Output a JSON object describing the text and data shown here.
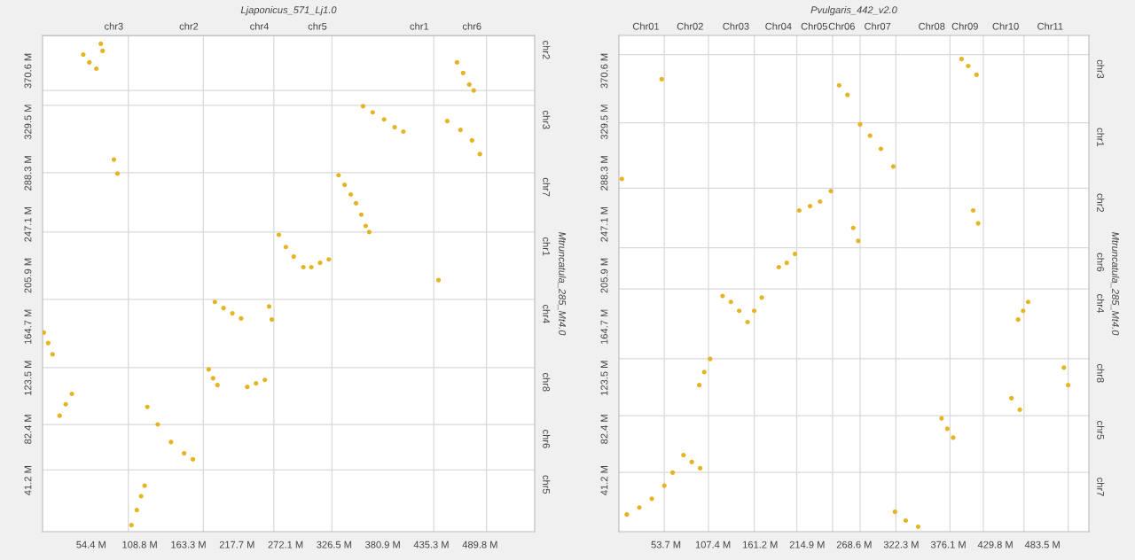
{
  "chart_data": [
    {
      "type": "scatter",
      "title": "Ljaponicus_571_Lj1.0",
      "y2label": "Mtruncatula_285_Mt4.0",
      "color": "#e6b422",
      "marker": "circle",
      "x": [
        99.6,
        105.5,
        110.4,
        114.3,
        117.3,
        128.9,
        143.8,
        158.5,
        168.3,
        19.1,
        25.9,
        32.8,
        1.4,
        6.3,
        11.2,
        186,
        190.9,
        195.8,
        229.2,
        239,
        248.9,
        192.9,
        202.7,
        212.5,
        222.3,
        253.7,
        256.7,
        264.6,
        272.4,
        281.2,
        292,
        300.9,
        310.7,
        320.5,
        331.4,
        338.2,
        345.1,
        351,
        356.9,
        361.8,
        365.7,
        358.8,
        369.6,
        382.4,
        394.2,
        404,
        453.1,
        467.9,
        480.8,
        489.6,
        464,
        470.9,
        477.8,
        482.7,
        79.9,
        83.9,
        45.6,
        52.4,
        60.3,
        65.2,
        67.2,
        443.3
      ],
      "values": [
        5.3,
        17.3,
        28.5,
        37,
        100.3,
        86.2,
        72.1,
        63,
        58.1,
        93.2,
        102.4,
        110.8,
        160.1,
        151.7,
        142.6,
        130.5,
        123.4,
        117.8,
        116.4,
        119.2,
        122,
        184.7,
        179.8,
        175.6,
        171.4,
        181.1,
        170.6,
        238.7,
        228.9,
        221.2,
        212.7,
        212.7,
        216.2,
        218.9,
        286.6,
        278.9,
        271.1,
        264.1,
        254.9,
        245.8,
        240.9,
        342.1,
        337.2,
        331.5,
        325.2,
        321.7,
        330.1,
        323,
        314.6,
        303.6,
        377.3,
        368.8,
        359.6,
        354.7,
        299.2,
        287.9,
        383.6,
        377.3,
        372.3,
        392.3,
        386.6,
        202.2
      ],
      "xlim": [
        0,
        551
      ],
      "ylim": [
        0,
        399
      ],
      "xticks": [
        {
          "value": 54.4,
          "label": "54.4 M"
        },
        {
          "value": 108.8,
          "label": "108.8 M"
        },
        {
          "value": 163.3,
          "label": "163.3 M"
        },
        {
          "value": 217.7,
          "label": "217.7 M"
        },
        {
          "value": 272.1,
          "label": "272.1 M"
        },
        {
          "value": 326.5,
          "label": "326.5 M"
        },
        {
          "value": 380.9,
          "label": "380.9 M"
        },
        {
          "value": 435.3,
          "label": "435.3 M"
        },
        {
          "value": 489.8,
          "label": "489.8 M"
        }
      ],
      "yticks": [
        {
          "value": 41.2,
          "label": "41.2 M"
        },
        {
          "value": 82.4,
          "label": "82.4 M"
        },
        {
          "value": 123.5,
          "label": "123.5 M"
        },
        {
          "value": 164.7,
          "label": "164.7 M"
        },
        {
          "value": 205.9,
          "label": "205.9 M"
        },
        {
          "value": 247.1,
          "label": "247.1 M"
        },
        {
          "value": 288.3,
          "label": "288.3 M"
        },
        {
          "value": 329.5,
          "label": "329.5 M"
        },
        {
          "value": 370.6,
          "label": "370.6 M"
        }
      ],
      "ref_lines": [
        {
          "axis": "x",
          "value": 96,
          "label": "chr3",
          "color": "#d9d9d9"
        },
        {
          "axis": "x",
          "value": 180,
          "label": "chr2",
          "color": "#d9d9d9"
        },
        {
          "axis": "x",
          "value": 259,
          "label": "chr4",
          "color": "#d9d9d9"
        },
        {
          "axis": "x",
          "value": 324,
          "label": "chr5",
          "color": "#d9d9d9"
        },
        {
          "axis": "x",
          "value": 438,
          "label": "chr1",
          "color": "#d9d9d9"
        },
        {
          "axis": "x",
          "value": 497,
          "label": "chr6",
          "color": "#d9d9d9"
        },
        {
          "axis": "y",
          "value": 399,
          "label": "chr2",
          "color": "#bbbbbb"
        },
        {
          "axis": "y",
          "value": 354.8,
          "color": "#d9d9d9"
        },
        {
          "axis": "y",
          "value": 342.8,
          "label": "chr3",
          "color": "#d9d9d9"
        },
        {
          "axis": "y",
          "value": 288.7,
          "label": "chr7",
          "color": "#d9d9d9"
        },
        {
          "axis": "y",
          "value": 240.9,
          "label": "chr1",
          "color": "#d9d9d9"
        },
        {
          "axis": "y",
          "value": 186.7,
          "label": "chr4",
          "color": "#d9d9d9"
        },
        {
          "axis": "y",
          "value": 131.9,
          "label": "chr8",
          "color": "#d9d9d9"
        },
        {
          "axis": "y",
          "value": 86.2,
          "label": "chr6",
          "color": "#d9d9d9"
        },
        {
          "axis": "y",
          "value": 49.6,
          "label": "chr5",
          "color": "#d9d9d9"
        }
      ]
    },
    {
      "type": "scatter",
      "title": "Pvulgaris_442_v2.0",
      "y2label": "Mtruncatula_285_Mt4.0",
      "color": "#e6b422",
      "marker": "circle",
      "x": [
        9,
        23.3,
        37.5,
        51.8,
        61.3,
        73.7,
        83.2,
        92.7,
        91.7,
        97.4,
        104.1,
        118.3,
        127.8,
        137.3,
        146.8,
        154.4,
        163,
        182.5,
        191.5,
        201,
        205.8,
        218.2,
        229.6,
        242,
        267.5,
        273.2,
        251.4,
        260.9,
        275.3,
        286.7,
        299,
        313.2,
        404.4,
        410.1,
        455.7,
        461.4,
        467.1,
        448.1,
        457.6,
        508,
        512.8,
        368.3,
        374.9,
        381.6,
        315.1,
        327.4,
        341.6,
        3.3,
        48.9,
        391.1,
        398.7,
        408.2
      ],
      "values": [
        13.8,
        19.4,
        26.4,
        37,
        47.5,
        61.6,
        56,
        51,
        117.8,
        128.4,
        138.9,
        189.5,
        184.7,
        177.6,
        168.5,
        177.6,
        188.2,
        212.7,
        216.2,
        223.3,
        258.3,
        261.8,
        265.4,
        273.9,
        244.2,
        233.8,
        358.9,
        351.2,
        327.5,
        318.4,
        307.8,
        293.6,
        258.3,
        247.9,
        170.6,
        177.6,
        184.7,
        107.3,
        98.1,
        131.9,
        117.8,
        91.1,
        82.7,
        75.6,
        15.9,
        8.9,
        3.9,
        283.6,
        363.8,
        380,
        374.4,
        367.4
      ],
      "xlim": [
        0,
        536.5
      ],
      "ylim": [
        0,
        399
      ],
      "xticks": [
        {
          "value": 53.7,
          "label": "53.7 M"
        },
        {
          "value": 107.4,
          "label": "107.4 M"
        },
        {
          "value": 161.2,
          "label": "161.2 M"
        },
        {
          "value": 214.9,
          "label": "214.9 M"
        },
        {
          "value": 268.6,
          "label": "268.6 M"
        },
        {
          "value": 322.3,
          "label": "322.3 M"
        },
        {
          "value": 376.1,
          "label": "376.1 M"
        },
        {
          "value": 429.8,
          "label": "429.8 M"
        },
        {
          "value": 483.5,
          "label": "483.5 M"
        }
      ],
      "yticks": [
        {
          "value": 41.2,
          "label": "41.2 M"
        },
        {
          "value": 82.4,
          "label": "82.4 M"
        },
        {
          "value": 123.5,
          "label": "123.5 M"
        },
        {
          "value": 164.7,
          "label": "164.7 M"
        },
        {
          "value": 205.9,
          "label": "205.9 M"
        },
        {
          "value": 247.1,
          "label": "247.1 M"
        },
        {
          "value": 288.3,
          "label": "288.3 M"
        },
        {
          "value": 329.5,
          "label": "329.5 M"
        },
        {
          "value": 370.6,
          "label": "370.6 M"
        }
      ],
      "ref_lines": [
        {
          "axis": "x",
          "value": 51.8,
          "label": "Chr01",
          "color": "#d9d9d9"
        },
        {
          "axis": "x",
          "value": 102.2,
          "label": "Chr02",
          "color": "#d9d9d9"
        },
        {
          "axis": "x",
          "value": 154.5,
          "label": "Chr03",
          "color": "#d9d9d9"
        },
        {
          "axis": "x",
          "value": 203,
          "label": "Chr04",
          "color": "#d9d9d9"
        },
        {
          "axis": "x",
          "value": 243.9,
          "label": "Chr05",
          "color": "#d9d9d9"
        },
        {
          "axis": "x",
          "value": 275.3,
          "label": "Chr06",
          "color": "#d9d9d9"
        },
        {
          "axis": "x",
          "value": 316.2,
          "label": "Chr07",
          "color": "#d9d9d9"
        },
        {
          "axis": "x",
          "value": 378,
          "label": "Chr08",
          "color": "#d9d9d9"
        },
        {
          "axis": "x",
          "value": 416,
          "label": "Chr09",
          "color": "#d9d9d9"
        },
        {
          "axis": "x",
          "value": 462.4,
          "label": "Chr10",
          "color": "#d9d9d9"
        },
        {
          "axis": "x",
          "value": 512.8,
          "label": "Chr11",
          "color": "#d9d9d9"
        },
        {
          "axis": "y",
          "value": 383.6,
          "label": "chr3",
          "color": "#d9d9d9"
        },
        {
          "axis": "y",
          "value": 328.8,
          "label": "chr1",
          "color": "#d9d9d9"
        },
        {
          "axis": "y",
          "value": 276.1,
          "label": "chr2",
          "color": "#d9d9d9"
        },
        {
          "axis": "y",
          "value": 228.3,
          "label": "chr6",
          "color": "#d9d9d9"
        },
        {
          "axis": "y",
          "value": 195.2,
          "label": "chr4",
          "color": "#d9d9d9"
        },
        {
          "axis": "y",
          "value": 139,
          "label": "chr8",
          "color": "#d9d9d9"
        },
        {
          "axis": "y",
          "value": 93.3,
          "label": "chr5",
          "color": "#d9d9d9"
        },
        {
          "axis": "y",
          "value": 47.6,
          "label": "chr7",
          "color": "#d9d9d9"
        }
      ]
    }
  ]
}
